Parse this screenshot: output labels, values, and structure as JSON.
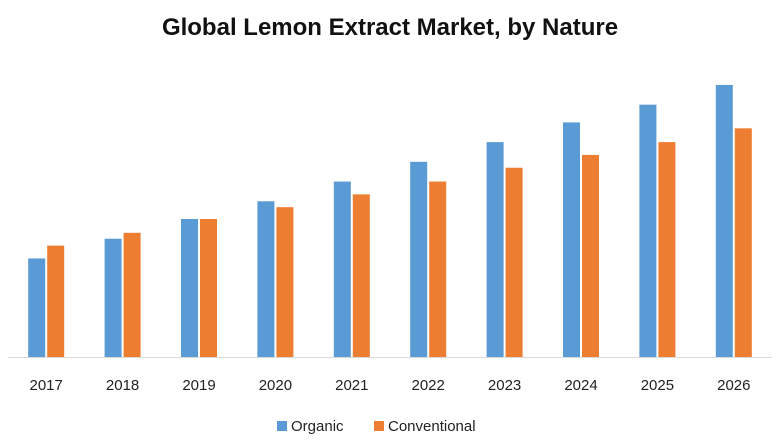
{
  "chart_data": {
    "type": "bar",
    "title": "Global Lemon Extract Market, by Nature",
    "xlabel": "",
    "ylabel": "",
    "categories": [
      "2017",
      "2018",
      "2019",
      "2020",
      "2021",
      "2022",
      "2023",
      "2024",
      "2025",
      "2026"
    ],
    "series": [
      {
        "name": "Organic",
        "color": "#5B9BD5",
        "values": [
          100,
          120,
          140,
          158,
          178,
          198,
          218,
          238,
          256,
          276
        ]
      },
      {
        "name": "Conventional",
        "color": "#ED7D31",
        "values": [
          113,
          126,
          140,
          152,
          165,
          178,
          192,
          205,
          218,
          232
        ]
      }
    ],
    "ylim": [
      0,
      280
    ],
    "grid": false,
    "legend_position": "bottom"
  }
}
